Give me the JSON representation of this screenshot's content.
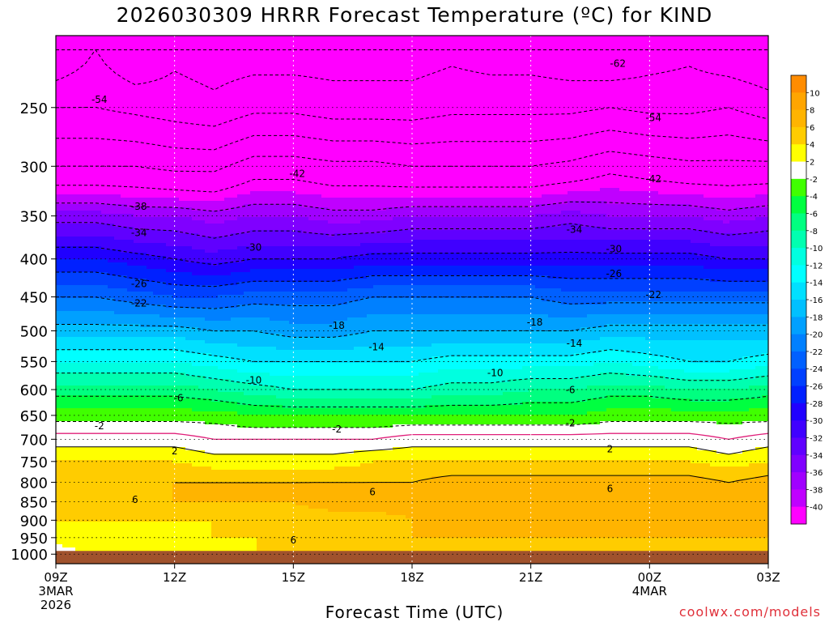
{
  "title": "2026030309 HRRR Forecast Temperature (ºC) for KIND",
  "credit": "coolwx.com/models",
  "chart_data": {
    "type": "heatmap",
    "title": "2026030309 HRRR Forecast Temperature (ºC) for KIND",
    "xlabel": "Forecast Time (UTC)",
    "ylabel": "",
    "x_ticks": [
      {
        "hour": 0,
        "label": "09Z",
        "sub": [
          "3MAR",
          "2026"
        ]
      },
      {
        "hour": 3,
        "label": "12Z",
        "sub": []
      },
      {
        "hour": 6,
        "label": "15Z",
        "sub": []
      },
      {
        "hour": 9,
        "label": "18Z",
        "sub": []
      },
      {
        "hour": 12,
        "label": "21Z",
        "sub": []
      },
      {
        "hour": 15,
        "label": "00Z",
        "sub": [
          "4MAR"
        ]
      },
      {
        "hour": 18,
        "label": "03Z",
        "sub": []
      }
    ],
    "y_ticks": [
      250,
      300,
      350,
      400,
      450,
      500,
      550,
      600,
      650,
      700,
      750,
      800,
      850,
      900,
      950,
      1000
    ],
    "y_range_hPa": [
      200,
      1030
    ],
    "x_range_hours": [
      0,
      18
    ],
    "surface_pressure_hPa": 990,
    "levels_hPa": [
      210,
      250,
      300,
      350,
      400,
      450,
      500,
      550,
      600,
      650,
      700,
      750,
      800,
      850,
      900,
      950,
      990
    ],
    "temperature_C": [
      [
        -62,
        -58,
        -62,
        -59,
        -60,
        -60,
        -60,
        -60,
        -60,
        -60,
        -59,
        -60,
        -60,
        -61,
        -62,
        -60,
        -59,
        -61,
        -62
      ],
      [
        -54,
        -54,
        -55,
        -56,
        -57,
        -55,
        -55,
        -56,
        -56,
        -56,
        -55,
        -55,
        -55,
        -55,
        -54,
        -55,
        -55,
        -54,
        -56
      ],
      [
        -46,
        -46,
        -46,
        -47,
        -47,
        -44,
        -44,
        -45,
        -45,
        -46,
        -46,
        -46,
        -46,
        -45,
        -43,
        -44,
        -45,
        -45,
        -45
      ],
      [
        -35,
        -35,
        -36,
        -36,
        -37,
        -36,
        -36,
        -37,
        -37,
        -36,
        -36,
        -36,
        -36,
        -35,
        -36,
        -36,
        -36,
        -37,
        -36
      ],
      [
        -28,
        -28,
        -29,
        -30,
        -31,
        -30,
        -30,
        -30,
        -29,
        -29,
        -29,
        -29,
        -29,
        -29,
        -29,
        -29,
        -29,
        -30,
        -30
      ],
      [
        -22,
        -22,
        -23,
        -24,
        -24,
        -23,
        -23,
        -23,
        -22,
        -22,
        -22,
        -22,
        -22,
        -23,
        -23,
        -23,
        -23,
        -23,
        -23
      ],
      [
        -17,
        -17,
        -17,
        -17,
        -18,
        -18,
        -19,
        -19,
        -18,
        -18,
        -18,
        -18,
        -18,
        -18,
        -17,
        -17,
        -17,
        -17,
        -17
      ],
      [
        -12,
        -12,
        -12,
        -12,
        -13,
        -14,
        -14,
        -14,
        -14,
        -14,
        -13,
        -13,
        -13,
        -13,
        -12,
        -13,
        -14,
        -14,
        -13
      ],
      [
        -7,
        -7,
        -7,
        -7,
        -8,
        -9,
        -10,
        -10,
        -10,
        -10,
        -9,
        -9,
        -8,
        -8,
        -7,
        -7,
        -8,
        -8,
        -7
      ],
      [
        -3,
        -3,
        -3,
        -3,
        -3,
        -4,
        -4,
        -4,
        -4,
        -4,
        -4,
        -4,
        -4,
        -4,
        -3,
        -3,
        -3,
        -3,
        -3
      ],
      [
        1,
        1,
        1,
        1,
        0,
        0,
        0,
        0,
        0,
        1,
        1,
        1,
        1,
        1,
        1,
        1,
        1,
        0,
        1
      ],
      [
        4,
        4,
        4,
        4,
        3,
        3,
        3,
        3,
        4,
        4,
        4,
        4,
        4,
        4,
        4,
        4,
        4,
        3,
        4
      ],
      [
        6,
        6,
        6,
        6,
        6,
        6,
        6,
        6,
        6,
        6,
        7,
        7,
        7,
        7,
        7,
        7,
        7,
        6,
        7
      ],
      [
        5,
        5,
        5,
        6,
        6,
        6,
        6,
        7,
        7,
        7,
        7,
        8,
        8,
        7,
        7,
        7,
        7,
        7,
        8
      ],
      [
        4,
        4,
        4,
        4,
        4,
        5,
        5,
        5,
        5,
        6,
        6,
        7,
        7,
        7,
        7,
        6,
        6,
        7,
        7
      ],
      [
        3,
        3,
        3,
        3,
        4,
        4,
        4,
        5,
        5,
        6,
        6,
        6,
        6,
        6,
        6,
        6,
        6,
        6,
        6
      ],
      [
        1,
        3,
        3,
        3,
        3,
        4,
        4,
        4,
        5,
        5,
        5,
        5,
        5,
        5,
        5,
        5,
        5,
        5,
        5
      ]
    ],
    "colorbar_labels": [
      "10",
      "8",
      "6",
      "4",
      "2",
      "-2",
      "-4",
      "-6",
      "-8",
      "-10",
      "-12",
      "-14",
      "-16",
      "-18",
      "-20",
      "-22",
      "-24",
      "-26",
      "-28",
      "-30",
      "-32",
      "-34",
      "-36",
      "-38",
      "-40"
    ],
    "contour_labels": [
      {
        "text": "-62",
        "hour": 14.2,
        "p": 218
      },
      {
        "text": "-54",
        "hour": 1.1,
        "p": 244
      },
      {
        "text": "-54",
        "hour": 15.1,
        "p": 258
      },
      {
        "text": "-42",
        "hour": 6.1,
        "p": 307
      },
      {
        "text": "-42",
        "hour": 15.1,
        "p": 312
      },
      {
        "text": "-38",
        "hour": 2.1,
        "p": 340
      },
      {
        "text": "-34",
        "hour": 2.1,
        "p": 369
      },
      {
        "text": "-34",
        "hour": 13.1,
        "p": 365
      },
      {
        "text": "-30",
        "hour": 5.0,
        "p": 386
      },
      {
        "text": "-30",
        "hour": 14.1,
        "p": 388
      },
      {
        "text": "-26",
        "hour": 2.1,
        "p": 432
      },
      {
        "text": "-26",
        "hour": 14.1,
        "p": 419
      },
      {
        "text": "-22",
        "hour": 2.1,
        "p": 459
      },
      {
        "text": "-22",
        "hour": 15.1,
        "p": 447
      },
      {
        "text": "-18",
        "hour": 7.1,
        "p": 492
      },
      {
        "text": "-18",
        "hour": 12.1,
        "p": 487
      },
      {
        "text": "-14",
        "hour": 8.1,
        "p": 526
      },
      {
        "text": "-14",
        "hour": 13.1,
        "p": 520
      },
      {
        "text": "-10",
        "hour": 5.0,
        "p": 583
      },
      {
        "text": "-10",
        "hour": 11.1,
        "p": 570
      },
      {
        "text": "-6",
        "hour": 3.1,
        "p": 616
      },
      {
        "text": "-6",
        "hour": 13.0,
        "p": 601
      },
      {
        "text": "-2",
        "hour": 1.1,
        "p": 672
      },
      {
        "text": "-2",
        "hour": 7.1,
        "p": 679
      },
      {
        "text": "-2",
        "hour": 13.0,
        "p": 666
      },
      {
        "text": "2",
        "hour": 3.0,
        "p": 726
      },
      {
        "text": "2",
        "hour": 14.0,
        "p": 722
      },
      {
        "text": "6",
        "hour": 2.0,
        "p": 844
      },
      {
        "text": "6",
        "hour": 8.0,
        "p": 825
      },
      {
        "text": "6",
        "hour": 14.0,
        "p": 816
      },
      {
        "text": "6",
        "hour": 6.0,
        "p": 957
      }
    ],
    "grid": true
  }
}
